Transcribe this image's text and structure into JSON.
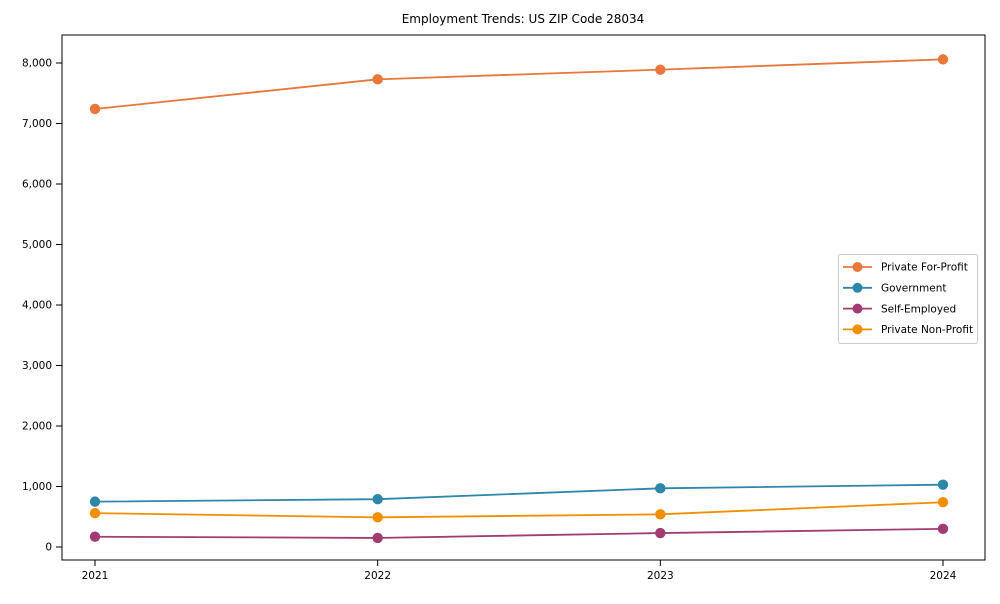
{
  "chart_data": {
    "type": "line",
    "title": "Employment Trends: US ZIP Code 28034",
    "x": [
      2021,
      2022,
      2023,
      2024
    ],
    "x_tick_labels": [
      "2021",
      "2022",
      "2023",
      "2024"
    ],
    "y_ticks": [
      0,
      1000,
      2000,
      3000,
      4000,
      5000,
      6000,
      7000,
      8000
    ],
    "y_tick_labels": [
      "0",
      "1,000",
      "2,000",
      "3,000",
      "4,000",
      "5,000",
      "6,000",
      "7,000",
      "8,000"
    ],
    "ylim": [
      -215,
      8460
    ],
    "grid": false,
    "background_color": "#ffffff",
    "axis_color": "#000000",
    "legend_position": "center-right",
    "legend_border_color": "#cccccc",
    "series": [
      {
        "name": "Private For-Profit",
        "color": "#e8773c",
        "values": [
          7240,
          7730,
          7890,
          8060
        ]
      },
      {
        "name": "Government",
        "color": "#2e86ab",
        "values": [
          750,
          790,
          970,
          1030
        ]
      },
      {
        "name": "Self-Employed",
        "color": "#a23b72",
        "values": [
          170,
          150,
          230,
          300
        ]
      },
      {
        "name": "Private Non-Profit",
        "color": "#f18f01",
        "values": [
          560,
          490,
          540,
          740
        ]
      }
    ]
  }
}
